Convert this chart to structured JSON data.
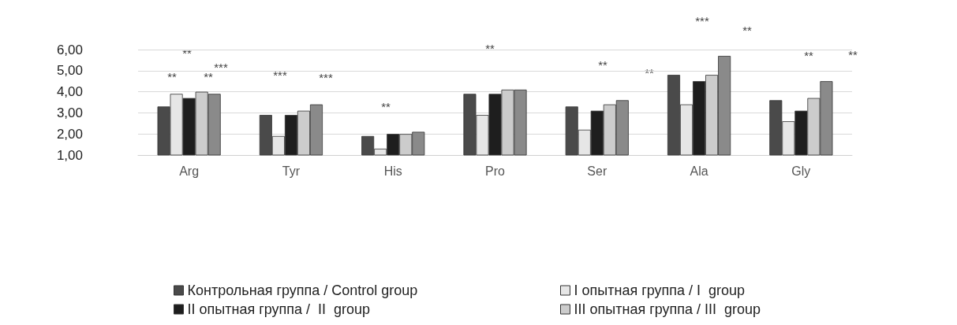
{
  "chart_data": {
    "type": "bar",
    "categories": [
      "Arg",
      "Tyr",
      "His",
      "Pro",
      "Ser",
      "Ala",
      "Gly"
    ],
    "series": [
      {
        "name": "Контрольная группа / Control group",
        "color": "#4a4a4a",
        "values": [
          3.3,
          2.9,
          1.9,
          3.9,
          3.3,
          4.8,
          3.6
        ]
      },
      {
        "name": "I опытная группа / I  group",
        "color": "#e6e6e6",
        "values": [
          3.9,
          1.9,
          1.3,
          2.9,
          2.2,
          3.4,
          2.6
        ]
      },
      {
        "name": "II опытная группа /  II  group",
        "color": "#1e1e1e",
        "values": [
          3.7,
          2.9,
          2.0,
          3.9,
          3.1,
          4.5,
          3.1
        ]
      },
      {
        "name": "III опытная группа / III  group",
        "color": "#cccccc",
        "values": [
          4.0,
          3.1,
          2.0,
          4.1,
          3.4,
          4.8,
          3.7
        ]
      },
      {
        "color": "#8a8a8a",
        "values": [
          3.9,
          3.4,
          2.1,
          4.1,
          3.6,
          5.7,
          4.5
        ]
      }
    ],
    "ylim": [
      1,
      6
    ],
    "yticks": [
      {
        "value": 1,
        "label": "1,00"
      },
      {
        "value": 2,
        "label": "2,00"
      },
      {
        "value": 3,
        "label": "3,00"
      },
      {
        "value": 4,
        "label": "4,00"
      },
      {
        "value": 5,
        "label": "5,00"
      },
      {
        "value": 6,
        "label": "6,00"
      }
    ],
    "annotations": [
      "**",
      "**",
      "**",
      "***",
      "***",
      "***",
      "**",
      "**",
      "**",
      "**",
      "***",
      "**",
      "**",
      "**"
    ],
    "grid": "y",
    "legend": "bottom"
  }
}
